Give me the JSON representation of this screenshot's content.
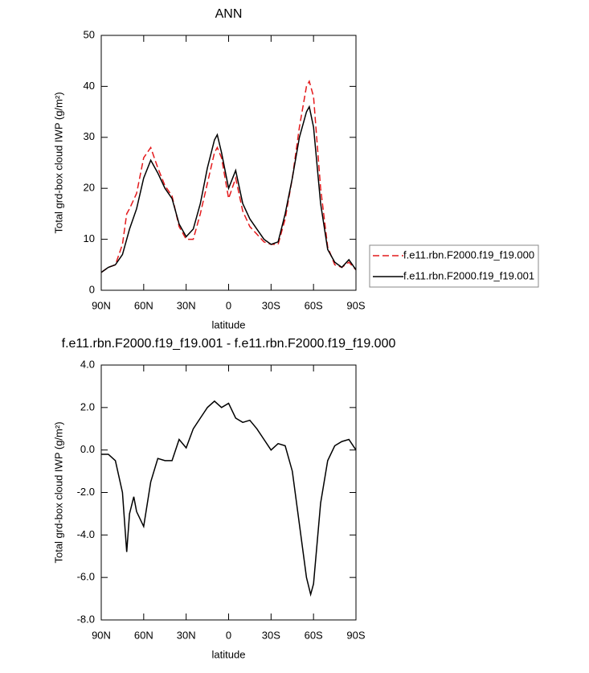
{
  "chart_data": [
    {
      "type": "line",
      "title": "ANN",
      "xlabel": "latitude",
      "ylabel": "Total grd-box cloud IWP (g/m²)",
      "x": [
        90,
        85,
        80,
        75,
        72,
        70,
        65,
        60,
        55,
        50,
        45,
        40,
        35,
        30,
        25,
        20,
        15,
        10,
        8,
        5,
        0,
        -5,
        -10,
        -15,
        -20,
        -25,
        -30,
        -35,
        -40,
        -45,
        -50,
        -55,
        -57,
        -60,
        -65,
        -70,
        -75,
        -80,
        -85,
        -90
      ],
      "series": [
        {
          "name": "f.e11.rbn.F2000.f19_f19.000",
          "color": "#e41a1c",
          "dash": "dashed",
          "values": [
            3.5,
            4.5,
            5,
            9,
            15,
            16,
            19,
            26,
            28,
            24,
            20.5,
            18.5,
            12.5,
            10,
            10,
            15,
            21,
            27,
            28,
            26,
            18,
            22,
            15.5,
            12.5,
            11,
            9.5,
            9,
            9,
            14,
            22,
            32,
            40,
            41,
            38,
            20,
            8.5,
            5,
            4.5,
            5.5,
            4
          ]
        },
        {
          "name": "f.e11.rbn.F2000.f19_f19.001",
          "color": "#000000",
          "dash": "solid",
          "values": [
            3.5,
            4.5,
            5,
            7,
            10,
            12,
            16,
            22,
            25.5,
            23,
            20,
            18,
            13,
            10.5,
            12,
            17,
            24,
            29.5,
            30.5,
            27,
            20,
            23.5,
            17,
            14,
            12,
            10,
            9,
            9.5,
            15,
            22,
            30,
            35,
            36,
            32,
            17,
            8,
            5.5,
            4.5,
            6,
            4
          ]
        }
      ],
      "xlim": [
        90,
        -90
      ],
      "xticks": [
        {
          "value": 90,
          "label": "90N"
        },
        {
          "value": 60,
          "label": "60N"
        },
        {
          "value": 30,
          "label": "30N"
        },
        0,
        {
          "value": -30,
          "label": "30S"
        },
        {
          "value": -60,
          "label": "60S"
        },
        {
          "value": -90,
          "label": "90S"
        }
      ],
      "ylim": [
        0,
        50
      ],
      "yticks": [
        0,
        10,
        20,
        30,
        40,
        50
      ],
      "legend": "right"
    },
    {
      "type": "line",
      "title": "f.e11.rbn.F2000.f19_f19.001 - f.e11.rbn.F2000.f19_f19.000",
      "xlabel": "latitude",
      "ylabel": "Total grd-box cloud IWP (g/m²)",
      "x": [
        90,
        85,
        80,
        75,
        72,
        70,
        67,
        65,
        60,
        55,
        50,
        45,
        40,
        35,
        30,
        25,
        20,
        15,
        10,
        5,
        0,
        -5,
        -10,
        -15,
        -20,
        -25,
        -30,
        -35,
        -40,
        -45,
        -50,
        -55,
        -58,
        -60,
        -65,
        -70,
        -75,
        -80,
        -85,
        -90
      ],
      "series": [
        {
          "color": "#000000",
          "dash": "solid",
          "values": [
            -0.2,
            -0.2,
            -0.5,
            -2,
            -4.8,
            -3,
            -2.2,
            -2.9,
            -3.6,
            -1.5,
            -0.4,
            -0.5,
            -0.5,
            0.5,
            0.1,
            1.0,
            1.5,
            2.0,
            2.3,
            2.0,
            2.2,
            1.5,
            1.3,
            1.4,
            1.0,
            0.5,
            0.0,
            0.3,
            0.2,
            -1.0,
            -3.5,
            -6.0,
            -6.8,
            -6.3,
            -2.5,
            -0.5,
            0.2,
            0.4,
            0.5,
            0.0
          ]
        }
      ],
      "xlim": [
        90,
        -90
      ],
      "xticks": [
        {
          "value": 90,
          "label": "90N"
        },
        {
          "value": 60,
          "label": "60N"
        },
        {
          "value": 30,
          "label": "30N"
        },
        0,
        {
          "value": -30,
          "label": "30S"
        },
        {
          "value": -60,
          "label": "60S"
        },
        {
          "value": -90,
          "label": "90S"
        }
      ],
      "ylim": [
        -8,
        4
      ],
      "yticks": [
        {
          "value": -8,
          "label": "-8.0"
        },
        {
          "value": -6,
          "label": "-6.0"
        },
        {
          "value": -4,
          "label": "-4.0"
        },
        {
          "value": -2,
          "label": "-2.0"
        },
        {
          "value": 0,
          "label": "0.0"
        },
        {
          "value": 2,
          "label": "2.0"
        },
        {
          "value": 4,
          "label": "4.0"
        }
      ]
    }
  ]
}
